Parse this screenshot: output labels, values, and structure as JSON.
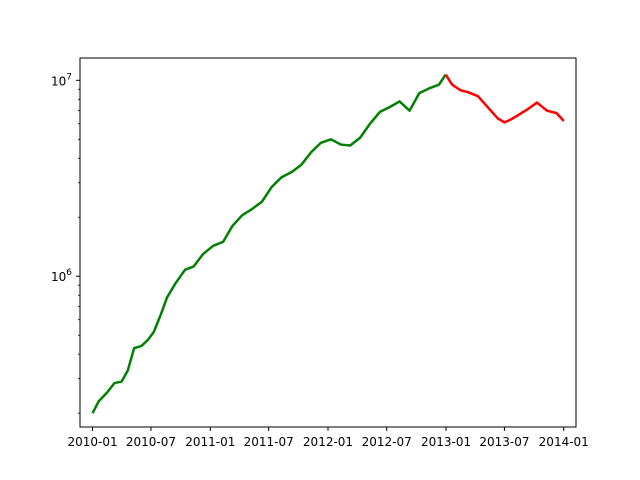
{
  "chart_data": {
    "type": "line",
    "title": "",
    "xlabel": "",
    "ylabel": "",
    "y_scale": "log",
    "grid": false,
    "legend": "none",
    "xlim": [
      "2009-11-23",
      "2014-02-08"
    ],
    "ylim": [
      170000,
      13000000
    ],
    "x_ticks": [
      {
        "date": "2010-01-01",
        "label": "2010-01"
      },
      {
        "date": "2010-07-01",
        "label": "2010-07"
      },
      {
        "date": "2011-01-01",
        "label": "2011-01"
      },
      {
        "date": "2011-07-01",
        "label": "2011-07"
      },
      {
        "date": "2012-01-01",
        "label": "2012-01"
      },
      {
        "date": "2012-07-01",
        "label": "2012-07"
      },
      {
        "date": "2013-01-01",
        "label": "2013-01"
      },
      {
        "date": "2013-07-01",
        "label": "2013-07"
      },
      {
        "date": "2014-01-01",
        "label": "2014-01"
      }
    ],
    "y_ticks": [
      {
        "value": 1000000,
        "base": "10",
        "exp": "6"
      },
      {
        "value": 10000000,
        "base": "10",
        "exp": "7"
      }
    ],
    "series": [
      {
        "color": "#008000",
        "points": [
          [
            "2010-01-01",
            200000
          ],
          [
            "2010-01-20",
            230000
          ],
          [
            "2010-02-15",
            255000
          ],
          [
            "2010-03-10",
            285000
          ],
          [
            "2010-04-01",
            290000
          ],
          [
            "2010-04-20",
            330000
          ],
          [
            "2010-05-10",
            430000
          ],
          [
            "2010-06-01",
            440000
          ],
          [
            "2010-06-20",
            470000
          ],
          [
            "2010-07-10",
            520000
          ],
          [
            "2010-08-01",
            640000
          ],
          [
            "2010-08-20",
            780000
          ],
          [
            "2010-09-15",
            920000
          ],
          [
            "2010-10-15",
            1080000
          ],
          [
            "2010-11-10",
            1120000
          ],
          [
            "2010-12-10",
            1300000
          ],
          [
            "2011-01-10",
            1430000
          ],
          [
            "2011-02-10",
            1500000
          ],
          [
            "2011-03-10",
            1800000
          ],
          [
            "2011-04-10",
            2050000
          ],
          [
            "2011-05-10",
            2200000
          ],
          [
            "2011-06-10",
            2400000
          ],
          [
            "2011-07-10",
            2850000
          ],
          [
            "2011-08-10",
            3200000
          ],
          [
            "2011-09-10",
            3400000
          ],
          [
            "2011-10-10",
            3700000
          ],
          [
            "2011-11-10",
            4300000
          ],
          [
            "2011-12-10",
            4800000
          ],
          [
            "2012-01-10",
            5000000
          ],
          [
            "2012-02-10",
            4700000
          ],
          [
            "2012-03-10",
            4650000
          ],
          [
            "2012-04-10",
            5100000
          ],
          [
            "2012-05-10",
            6000000
          ],
          [
            "2012-06-10",
            6900000
          ],
          [
            "2012-07-10",
            7300000
          ],
          [
            "2012-08-10",
            7800000
          ],
          [
            "2012-09-10",
            7000000
          ],
          [
            "2012-10-10",
            8600000
          ],
          [
            "2012-11-10",
            9100000
          ],
          [
            "2012-12-10",
            9500000
          ],
          [
            "2012-12-31",
            10700000
          ]
        ]
      },
      {
        "color": "#ff0000",
        "points": [
          [
            "2012-12-31",
            10700000
          ],
          [
            "2013-01-20",
            9500000
          ],
          [
            "2013-02-15",
            8900000
          ],
          [
            "2013-03-10",
            8700000
          ],
          [
            "2013-04-10",
            8300000
          ],
          [
            "2013-05-10",
            7300000
          ],
          [
            "2013-06-10",
            6400000
          ],
          [
            "2013-07-01",
            6100000
          ],
          [
            "2013-07-20",
            6300000
          ],
          [
            "2013-08-10",
            6600000
          ],
          [
            "2013-09-10",
            7100000
          ],
          [
            "2013-10-10",
            7700000
          ],
          [
            "2013-11-10",
            7000000
          ],
          [
            "2013-12-10",
            6800000
          ],
          [
            "2014-01-01",
            6200000
          ]
        ]
      }
    ]
  }
}
